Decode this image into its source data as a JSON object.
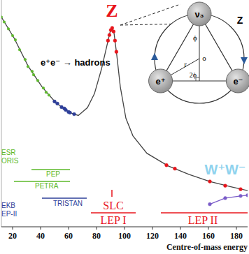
{
  "chart_data": {
    "type": "scatter",
    "log": "y",
    "xlim": [
      12,
      188
    ],
    "ylim": [
      10,
      100000
    ],
    "xticks": [
      20,
      40,
      60,
      80,
      100,
      120,
      140,
      160,
      180
    ],
    "tick_labels": "x",
    "xlabel": "Centre-of-mass energy",
    "series": [
      {
        "type": "line",
        "color": "#444444",
        "x": [
          11,
          21,
          31,
          41,
          51,
          61,
          67,
          73.5,
          78.5,
          83.5,
          87,
          89.5,
          91,
          92.5,
          94.5,
          97,
          101,
          106,
          116,
          131,
          146,
          161,
          176,
          189
        ],
        "values": [
          55000,
          21500,
          6900,
          2950,
          1530,
          1030,
          920,
          1260,
          2220,
          6000,
          14100,
          26300,
          33000,
          26300,
          10600,
          2950,
          820,
          403,
          198,
          119,
          84,
          63,
          51,
          43
        ]
      },
      {
        "type": "scatter",
        "color": "#5cb82a",
        "marker": "circle",
        "x": [
          12,
          14,
          17,
          20,
          22,
          25,
          29,
          31,
          34,
          35,
          38,
          42,
          44,
          46
        ],
        "values": [
          50000,
          41000,
          31000,
          23500,
          19800,
          13300,
          8900,
          6700,
          5500,
          4800,
          3800,
          2800,
          2350,
          2100
        ]
      },
      {
        "type": "scatter",
        "color": "#2e3f99",
        "marker": "circle",
        "x": [
          50,
          52,
          55,
          57,
          58,
          60,
          61,
          64
        ],
        "values": [
          1620,
          1490,
          1290,
          1220,
          1150,
          1060,
          1030,
          970
        ]
      },
      {
        "type": "scatter",
        "color": "#e8141b",
        "marker": "circle",
        "x": [
          88.2,
          89.2,
          90.2,
          91.2,
          92.2,
          93.2,
          94.2
        ],
        "values": [
          19200,
          24100,
          29500,
          32100,
          27800,
          19200,
          12200
        ]
      },
      {
        "type": "scatter",
        "color": "#e8141b",
        "marker": "circle",
        "x": [
          130,
          136,
          161,
          172,
          183
        ],
        "values": [
          122,
          106,
          63,
          53,
          46
        ]
      },
      {
        "type": "line",
        "color": "#7a5cc8",
        "marker": "circle",
        "x": [
          161,
          172,
          183,
          188
        ],
        "values": [
          25,
          32,
          35,
          36
        ]
      }
    ],
    "annotations": [
      {
        "text": "Z",
        "color": "#e8141b"
      },
      {
        "text": "e⁺e⁻ → hadrons",
        "color": "#000000"
      },
      {
        "text": "ESR",
        "color": "#5cb82a"
      },
      {
        "text": "ORIS",
        "color": "#5cb82a"
      },
      {
        "text": "PEP",
        "color": "#5cb82a",
        "range": [
          33.5,
          61
        ]
      },
      {
        "text": "PETRA",
        "color": "#5cb82a",
        "range": [
          21,
          61
        ]
      },
      {
        "text": "TRISTAN",
        "color": "#2e3f99",
        "range": [
          41,
          73
        ]
      },
      {
        "text": "EKB",
        "color": "#2e3f99"
      },
      {
        "text": "EP-II",
        "color": "#2e3f99"
      },
      {
        "text": "SLC",
        "color": "#e8141b",
        "range": [
          91,
          91
        ]
      },
      {
        "text": "LEP I",
        "color": "#e8141b",
        "range": [
          76,
          108
        ]
      },
      {
        "text": "LEP II",
        "color": "#e8141b",
        "range": [
          126,
          188
        ]
      },
      {
        "text": "W⁺W⁻",
        "color": "#8fd3ee"
      },
      {
        "text": "ν₃",
        "color": "#000000"
      },
      {
        "text": "e⁺",
        "color": "#000000"
      },
      {
        "text": "e⁻",
        "color": "#000000"
      },
      {
        "text": "Z",
        "color": "#000000"
      },
      {
        "text": "ϕ",
        "color": "#000000"
      },
      {
        "text": "o",
        "color": "#000000"
      },
      {
        "text": "r",
        "color": "#000000"
      },
      {
        "text": "2ϕ",
        "color": "#000000"
      }
    ]
  }
}
